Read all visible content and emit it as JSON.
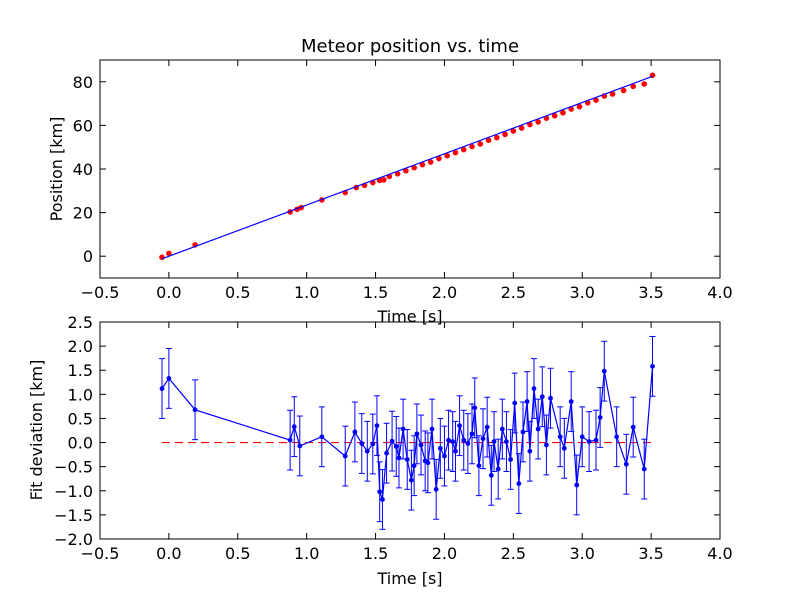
{
  "chart_data": [
    {
      "type": "scatter",
      "title": "Meteor position vs. time",
      "xlabel": "Time [s]",
      "ylabel": "Position [km]",
      "xlim": [
        -0.5,
        4.0
      ],
      "ylim": [
        -10,
        90
      ],
      "xticks": [
        -0.5,
        0.0,
        0.5,
        1.0,
        1.5,
        2.0,
        2.5,
        3.0,
        3.5,
        4.0
      ],
      "xtick_labels": [
        "−0.5",
        "0.0",
        "0.5",
        "1.0",
        "1.5",
        "2.0",
        "2.5",
        "3.0",
        "3.5",
        "4.0"
      ],
      "yticks": [
        0,
        20,
        40,
        60,
        80
      ],
      "ytick_labels": [
        "0",
        "20",
        "40",
        "60",
        "80"
      ],
      "grid": false,
      "colors": {
        "points": "#ff0000",
        "fit": "#0000ff"
      },
      "series": [
        {
          "style": "points",
          "x": [
            -0.05,
            0.0,
            0.19,
            0.88,
            0.93,
            0.96,
            1.11,
            1.28,
            1.36,
            1.42,
            1.48,
            1.53,
            1.56,
            1.6,
            1.66,
            1.72,
            1.78,
            1.84,
            1.9,
            1.96,
            2.02,
            2.08,
            2.14,
            2.2,
            2.26,
            2.32,
            2.38,
            2.44,
            2.5,
            2.56,
            2.62,
            2.68,
            2.74,
            2.8,
            2.86,
            2.92,
            2.98,
            3.04,
            3.1,
            3.16,
            3.22,
            3.3,
            3.37,
            3.45,
            3.51
          ],
          "y": [
            -0.5,
            1.3,
            5.2,
            20.3,
            21.5,
            22.3,
            25.8,
            29.2,
            31.5,
            32.5,
            33.8,
            34.8,
            35.0,
            36.6,
            37.8,
            39.2,
            40.6,
            42.0,
            43.2,
            44.8,
            46.1,
            47.5,
            48.9,
            50.3,
            51.5,
            53.2,
            54.4,
            55.9,
            57.4,
            58.8,
            60.4,
            61.6,
            63.3,
            64.4,
            65.8,
            67.5,
            68.6,
            70.4,
            71.6,
            73.5,
            74.4,
            76.0,
            77.9,
            79.0,
            83.0
          ]
        },
        {
          "style": "line",
          "x": [
            -0.05,
            3.51
          ],
          "y": [
            -1.2,
            82.5
          ]
        }
      ]
    },
    {
      "type": "line",
      "xlabel": "Time [s]",
      "ylabel": "Fit deviation [km]",
      "xlim": [
        -0.5,
        4.0
      ],
      "ylim": [
        -2.0,
        2.5
      ],
      "xticks": [
        -0.5,
        0.0,
        0.5,
        1.0,
        1.5,
        2.0,
        2.5,
        3.0,
        3.5,
        4.0
      ],
      "xtick_labels": [
        "−0.5",
        "0.0",
        "0.5",
        "1.0",
        "1.5",
        "2.0",
        "2.5",
        "3.0",
        "3.5",
        "4.0"
      ],
      "yticks": [
        -2.0,
        -1.5,
        -1.0,
        -0.5,
        0.0,
        0.5,
        1.0,
        1.5,
        2.0,
        2.5
      ],
      "ytick_labels": [
        "−2.0",
        "−1.5",
        "−1.0",
        "−0.5",
        "0.0",
        "0.5",
        "1.0",
        "1.5",
        "2.0",
        "2.5"
      ],
      "grid": false,
      "colors": {
        "deviation": "#0000ff",
        "zero_line": "#ff0000"
      },
      "error_km": 0.62,
      "zero_line": {
        "x": [
          -0.05,
          3.51
        ],
        "y": [
          0,
          0
        ],
        "style": "dashed"
      },
      "x": [
        -0.05,
        0.0,
        0.19,
        0.88,
        0.91,
        0.95,
        1.11,
        1.28,
        1.35,
        1.4,
        1.44,
        1.48,
        1.51,
        1.53,
        1.55,
        1.58,
        1.62,
        1.65,
        1.67,
        1.7,
        1.73,
        1.76,
        1.78,
        1.8,
        1.83,
        1.86,
        1.88,
        1.91,
        1.94,
        1.97,
        2.0,
        2.03,
        2.06,
        2.08,
        2.11,
        2.14,
        2.17,
        2.2,
        2.22,
        2.25,
        2.28,
        2.31,
        2.34,
        2.36,
        2.39,
        2.42,
        2.45,
        2.48,
        2.51,
        2.54,
        2.57,
        2.6,
        2.62,
        2.65,
        2.68,
        2.71,
        2.74,
        2.77,
        2.84,
        2.87,
        2.92,
        2.96,
        3.0,
        3.05,
        3.1,
        3.13,
        3.16,
        3.25,
        3.32,
        3.37,
        3.45,
        3.51
      ],
      "y": [
        1.12,
        1.33,
        0.68,
        0.05,
        0.33,
        -0.07,
        0.12,
        -0.28,
        0.22,
        -0.02,
        -0.18,
        -0.03,
        0.35,
        -1.02,
        -1.18,
        -0.22,
        0.03,
        -0.08,
        -0.32,
        0.28,
        -0.35,
        -0.78,
        -0.48,
        0.18,
        -0.05,
        -0.38,
        -0.42,
        0.28,
        -0.97,
        -0.12,
        -0.28,
        0.05,
        0.02,
        -0.18,
        0.35,
        0.05,
        -0.02,
        0.18,
        0.72,
        -0.48,
        0.08,
        0.32,
        -0.68,
        0.02,
        -0.55,
        0.28,
        0.02,
        -0.35,
        0.82,
        -0.85,
        0.22,
        0.85,
        -0.18,
        1.12,
        0.28,
        0.95,
        -0.05,
        0.92,
        0.12,
        -0.12,
        0.85,
        -0.88,
        0.12,
        0.02,
        0.05,
        0.52,
        1.48,
        0.12,
        -0.45,
        0.32,
        -0.55,
        1.58
      ]
    }
  ]
}
